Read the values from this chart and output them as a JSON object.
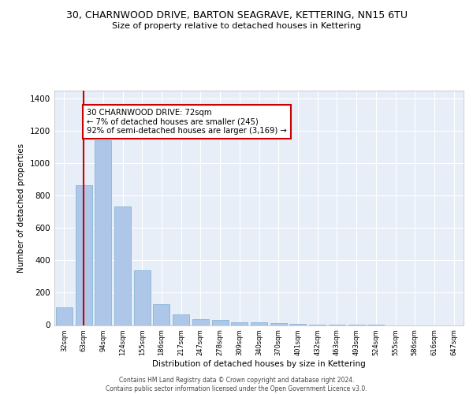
{
  "title": "30, CHARNWOOD DRIVE, BARTON SEAGRAVE, KETTERING, NN15 6TU",
  "subtitle": "Size of property relative to detached houses in Kettering",
  "xlabel": "Distribution of detached houses by size in Kettering",
  "ylabel": "Number of detached properties",
  "categories": [
    "32sqm",
    "63sqm",
    "94sqm",
    "124sqm",
    "155sqm",
    "186sqm",
    "217sqm",
    "247sqm",
    "278sqm",
    "309sqm",
    "340sqm",
    "370sqm",
    "401sqm",
    "432sqm",
    "463sqm",
    "493sqm",
    "524sqm",
    "555sqm",
    "586sqm",
    "616sqm",
    "647sqm"
  ],
  "values": [
    110,
    865,
    1145,
    735,
    340,
    130,
    65,
    38,
    30,
    18,
    15,
    10,
    5,
    3,
    2,
    1,
    1,
    0,
    0,
    0,
    0
  ],
  "bar_color": "#aec6e8",
  "bar_edge_color": "#7aafd4",
  "vline_x": 1,
  "vline_color": "#cc0000",
  "annotation_text": "30 CHARNWOOD DRIVE: 72sqm\n← 7% of detached houses are smaller (245)\n92% of semi-detached houses are larger (3,169) →",
  "annotation_box_color": "#cc0000",
  "annotation_box_fill": "#ffffff",
  "ylim": [
    0,
    1450
  ],
  "yticks": [
    0,
    200,
    400,
    600,
    800,
    1000,
    1200,
    1400
  ],
  "background_color": "#e8eef8",
  "grid_color": "#ffffff",
  "footer_line1": "Contains HM Land Registry data © Crown copyright and database right 2024.",
  "footer_line2": "Contains public sector information licensed under the Open Government Licence v3.0."
}
